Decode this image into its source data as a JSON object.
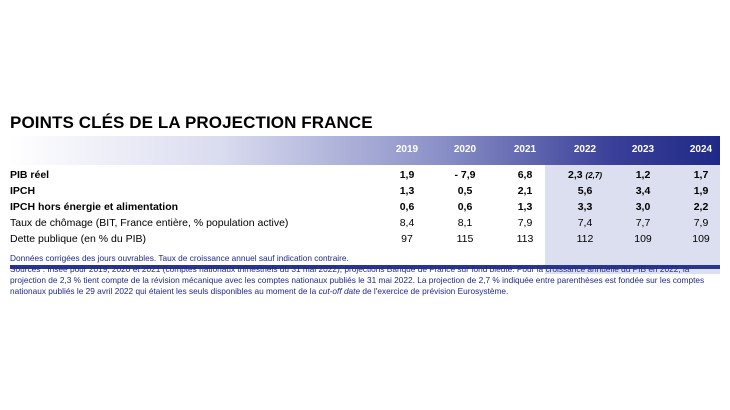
{
  "title": "POINTS CLÉS DE LA PROJECTION FRANCE",
  "years": [
    "2019",
    "2020",
    "2021",
    "2022",
    "2023",
    "2024"
  ],
  "rows": [
    {
      "label": "PIB réel",
      "bold": true,
      "values": [
        "1,9",
        "- 7,9",
        "6,8",
        "2,3",
        "1,2",
        "1,7"
      ],
      "note_2022": "(2,7)"
    },
    {
      "label": "IPCH",
      "bold": true,
      "values": [
        "1,3",
        "0,5",
        "2,1",
        "5,6",
        "3,4",
        "1,9"
      ]
    },
    {
      "label": "IPCH hors énergie et alimentation",
      "bold": true,
      "values": [
        "0,6",
        "0,6",
        "1,3",
        "3,3",
        "3,0",
        "2,2"
      ]
    },
    {
      "label": "Taux de chômage (BIT, France entière, % population active)",
      "bold": false,
      "values": [
        "8,4",
        "8,1",
        "7,9",
        "7,4",
        "7,7",
        "7,9"
      ]
    },
    {
      "label": "Dette publique (en % du PIB)",
      "bold": false,
      "values": [
        "97",
        "115",
        "113",
        "112",
        "109",
        "109"
      ]
    }
  ],
  "notes": {
    "line1": "Données corrigées des jours ouvrables. Taux de croissance annuel sauf indication contraire.",
    "line2_a": "Sources : Insee pour 2019, 2020 et 2021 (comptes nationaux trimestriels du 31 mai 2022), projections Banque de France sur fond bleuté. Pour la croissance annuelle du PIB en 2022, la projection de 2,3 % tient compte de la révision mécanique avec les comptes nationaux publiés le 31 mai 2022. La projection de 2,7 % indiquée entre parenthèses est fondée sur les comptes nationaux publiés le 29 avril 2022 qui étaient les seuls disponibles au moment de la ",
    "line2_italic": "cut-off date",
    "line2_b": " de l'exercice de prévision Eurosystème."
  },
  "colors": {
    "header_dark": "#1f2a86",
    "projection_shade": "#dcdff0",
    "notes_text": "#1f2a86"
  }
}
